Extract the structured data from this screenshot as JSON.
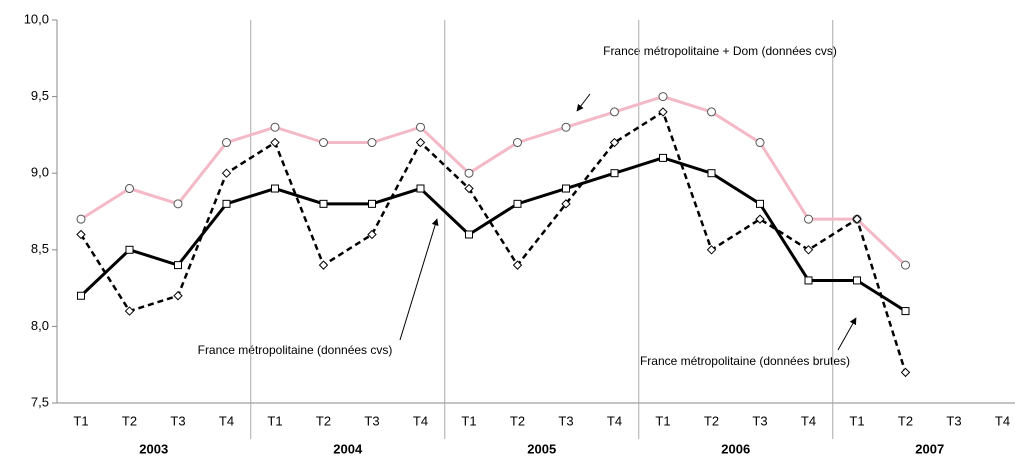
{
  "chart_data": {
    "type": "line",
    "categories": [
      "T1",
      "T2",
      "T3",
      "T4",
      "T1",
      "T2",
      "T3",
      "T4",
      "T1",
      "T2",
      "T3",
      "T4",
      "T1",
      "T2",
      "T3",
      "T4",
      "T1",
      "T2",
      "T3",
      "T4"
    ],
    "years": [
      "2003",
      "2004",
      "2005",
      "2006",
      "2007"
    ],
    "ylim": [
      7.5,
      10.0
    ],
    "yticks": [
      {
        "value": 7.5,
        "label": "7,5"
      },
      {
        "value": 8.0,
        "label": "8,0"
      },
      {
        "value": 8.5,
        "label": "8,5"
      },
      {
        "value": 9.0,
        "label": "9,0"
      },
      {
        "value": 9.5,
        "label": "9,5"
      },
      {
        "value": 10.0,
        "label": "10,0"
      }
    ],
    "series": [
      {
        "name": "France métropolitaine + Dom (données cvs)",
        "color": "#f4b9c6",
        "marker": "circle",
        "dash": false,
        "values": [
          8.7,
          8.9,
          8.8,
          9.2,
          9.3,
          9.2,
          9.2,
          9.3,
          9.0,
          9.2,
          9.3,
          9.4,
          9.5,
          9.4,
          9.2,
          8.7,
          8.7,
          8.4,
          null,
          null
        ]
      },
      {
        "name": "France métropolitaine (données cvs)",
        "color": "#000000",
        "marker": "square",
        "dash": false,
        "values": [
          8.2,
          8.5,
          8.4,
          8.8,
          8.9,
          8.8,
          8.8,
          8.9,
          8.6,
          8.8,
          8.9,
          9.0,
          9.1,
          9.0,
          8.8,
          8.3,
          8.3,
          8.1,
          null,
          null
        ]
      },
      {
        "name": "France métropolitaine (données brutes)",
        "color": "#000000",
        "marker": "diamond",
        "dash": true,
        "values": [
          8.6,
          8.1,
          8.2,
          9.0,
          9.2,
          8.4,
          8.6,
          9.2,
          8.9,
          8.4,
          8.8,
          9.2,
          9.4,
          8.5,
          8.7,
          8.5,
          8.7,
          7.7,
          null,
          null
        ]
      }
    ]
  }
}
